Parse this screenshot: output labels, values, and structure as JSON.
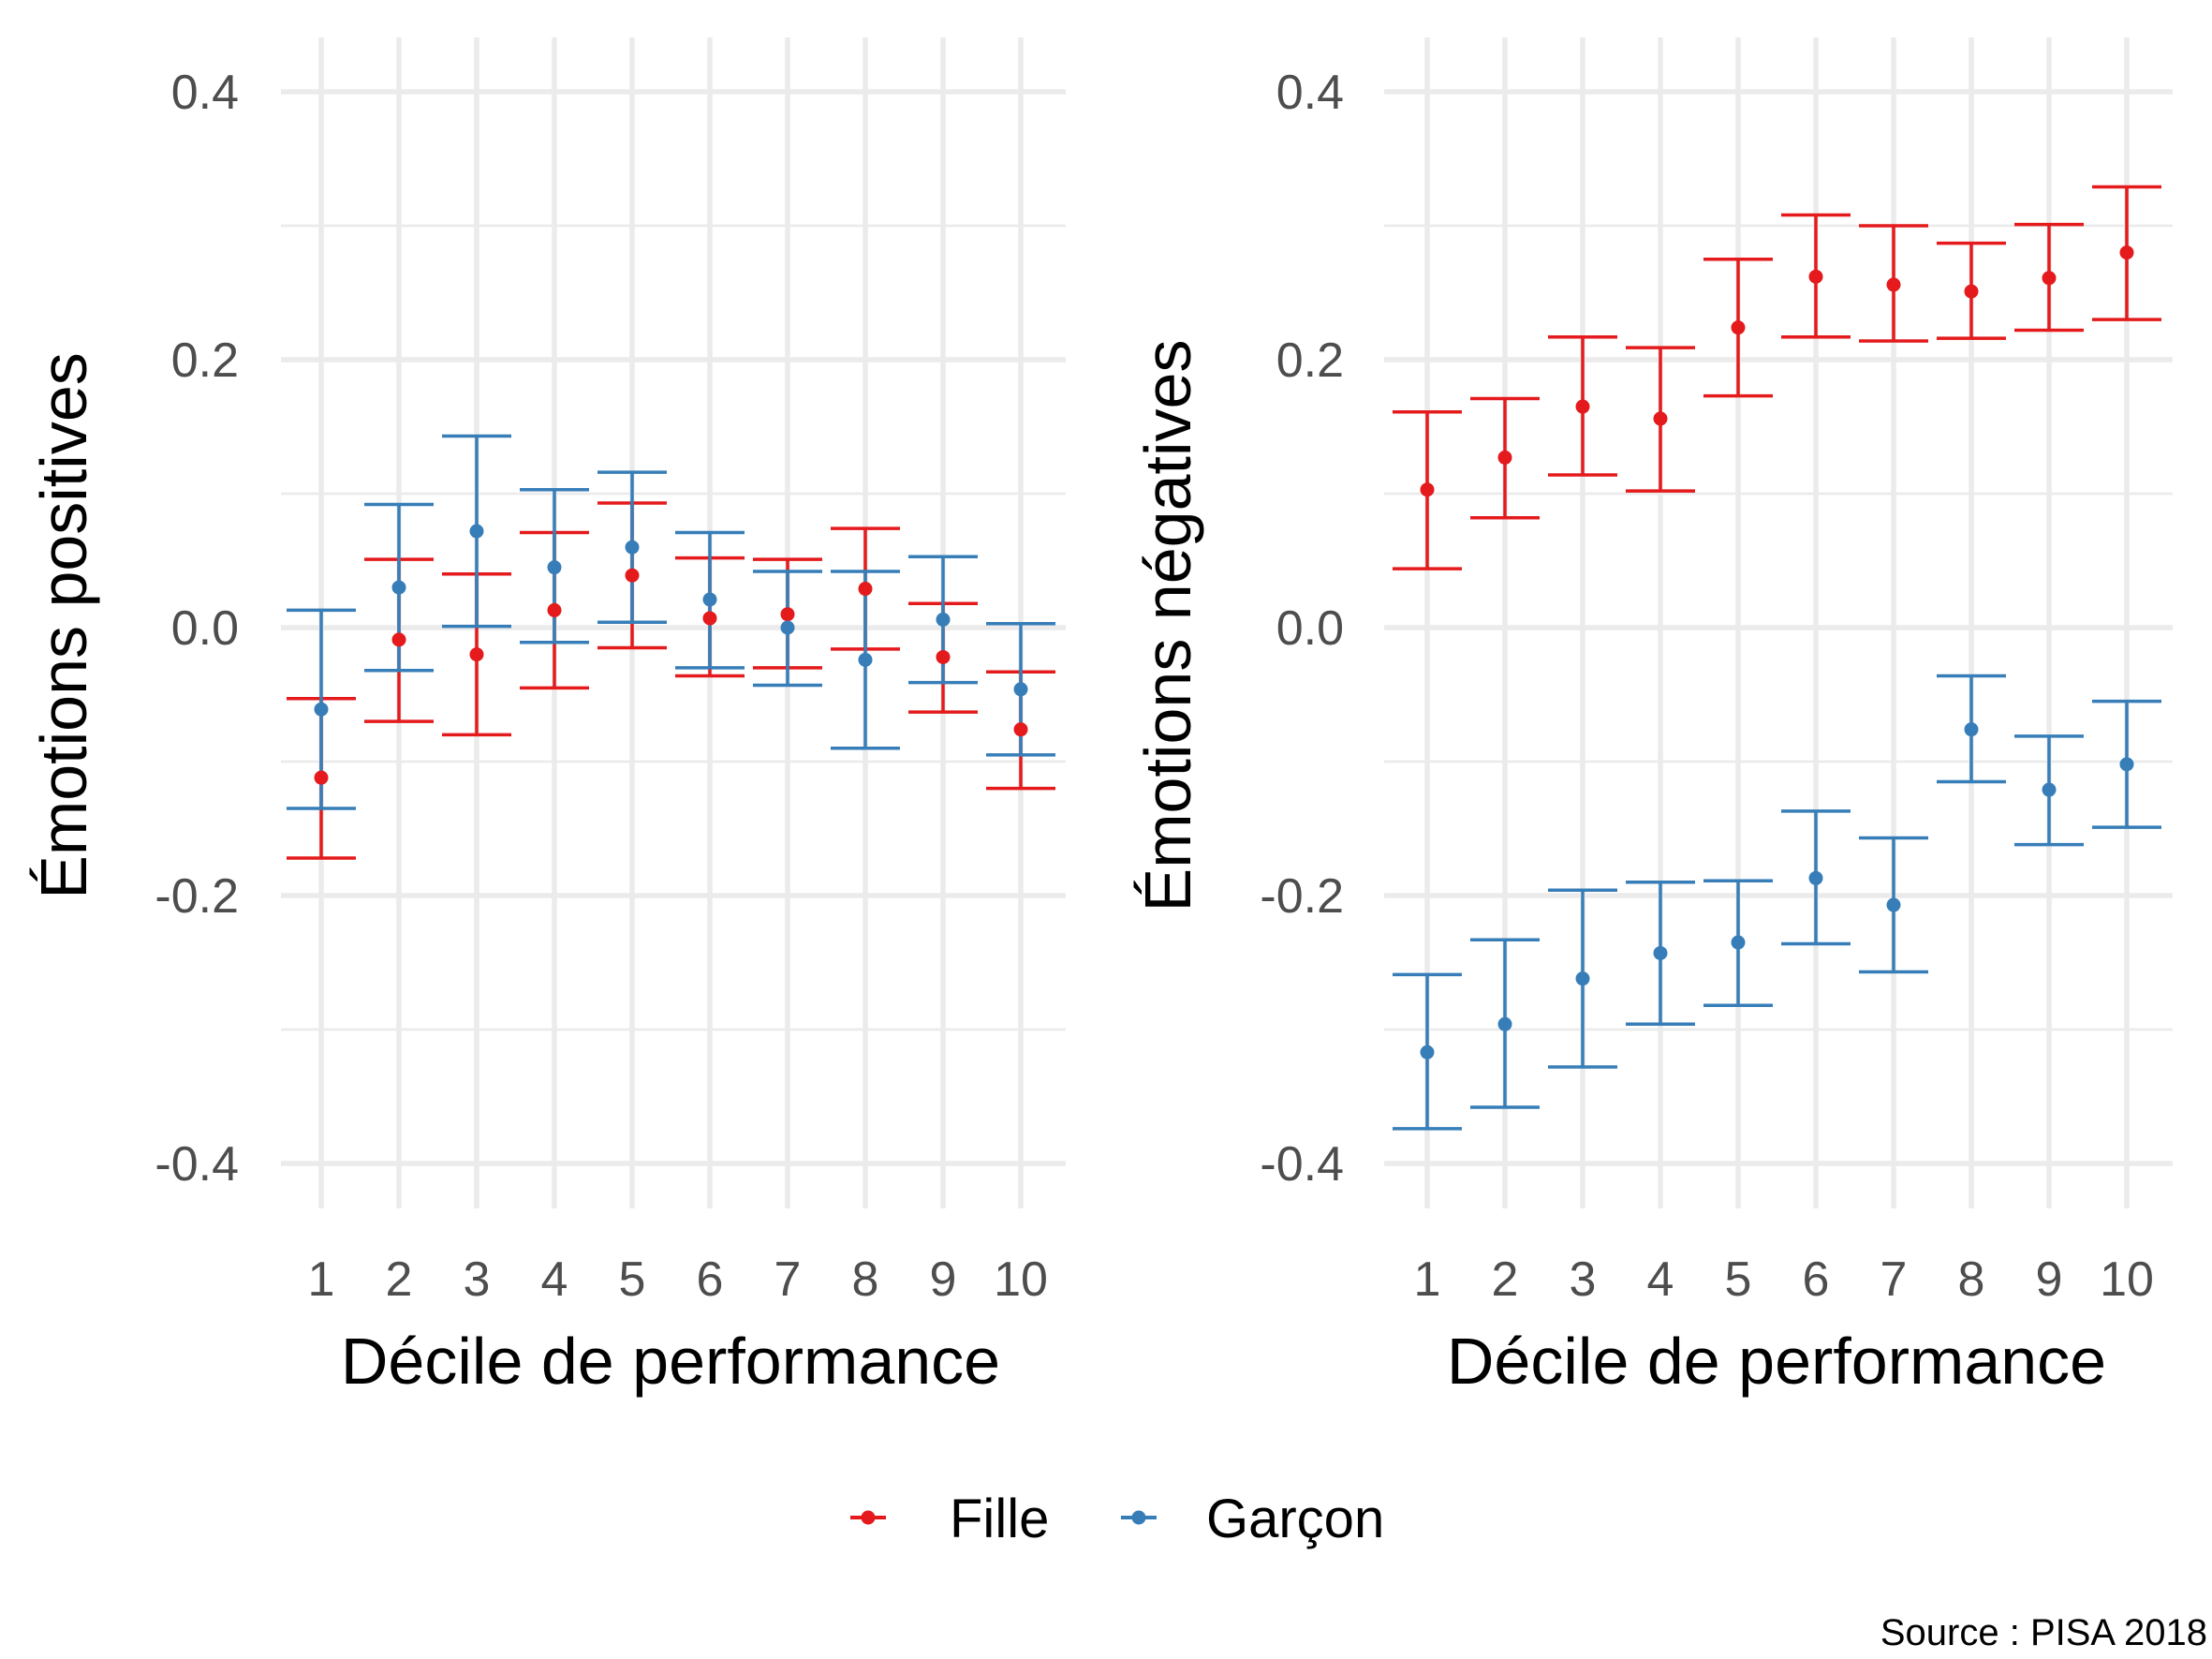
{
  "colors": {
    "Fille": "#e41a1c",
    "Garçon": "#377eb8",
    "grid": "#ebebeb",
    "tick_text": "#4d4d4d"
  },
  "legend": {
    "position": "bottom",
    "items": [
      "Fille",
      "Garçon"
    ]
  },
  "caption": "Source : PISA 2018",
  "chart_data": [
    {
      "type": "errorbar",
      "xlabel": "Décile de performance",
      "ylabel": "Émotions positives",
      "categories": [
        "1",
        "2",
        "3",
        "4",
        "5",
        "6",
        "7",
        "8",
        "9",
        "10"
      ],
      "ylim": [
        -0.44,
        0.44
      ],
      "yticks": [
        -0.4,
        -0.2,
        0.0,
        0.2,
        0.4
      ],
      "ytick_labels": [
        "-0.4",
        "-0.2",
        "0.0",
        "0.2",
        "0.4"
      ],
      "grid": true,
      "series": [
        {
          "name": "Fille",
          "values": [
            -0.112,
            -0.009,
            -0.02,
            0.013,
            0.039,
            0.007,
            0.01,
            0.029,
            -0.022,
            -0.076
          ],
          "lower": [
            -0.172,
            -0.07,
            -0.08,
            -0.045,
            -0.015,
            -0.036,
            -0.03,
            -0.016,
            -0.063,
            -0.12
          ],
          "upper": [
            -0.053,
            0.051,
            0.04,
            0.071,
            0.093,
            0.052,
            0.051,
            0.074,
            0.018,
            -0.033
          ]
        },
        {
          "name": "Garçon",
          "values": [
            -0.061,
            0.03,
            0.072,
            0.045,
            0.06,
            0.021,
            0.0,
            -0.024,
            0.006,
            -0.046
          ],
          "lower": [
            -0.135,
            -0.032,
            0.001,
            -0.011,
            0.004,
            -0.03,
            -0.043,
            -0.09,
            -0.041,
            -0.095
          ],
          "upper": [
            0.013,
            0.092,
            0.143,
            0.103,
            0.116,
            0.071,
            0.042,
            0.042,
            0.053,
            0.003
          ]
        }
      ]
    },
    {
      "type": "errorbar",
      "xlabel": "Décile de performance",
      "ylabel": "Émotions négatives",
      "categories": [
        "1",
        "2",
        "3",
        "4",
        "5",
        "6",
        "7",
        "8",
        "9",
        "10"
      ],
      "ylim": [
        -0.44,
        0.44
      ],
      "yticks": [
        -0.4,
        -0.2,
        0.0,
        0.2,
        0.4
      ],
      "ytick_labels": [
        "-0.4",
        "-0.2",
        "0.0",
        "0.2",
        "0.4"
      ],
      "grid": true,
      "series": [
        {
          "name": "Fille",
          "values": [
            0.103,
            0.127,
            0.165,
            0.156,
            0.224,
            0.262,
            0.256,
            0.251,
            0.261,
            0.28
          ],
          "lower": [
            0.044,
            0.082,
            0.114,
            0.102,
            0.173,
            0.217,
            0.214,
            0.216,
            0.222,
            0.23
          ],
          "upper": [
            0.161,
            0.171,
            0.217,
            0.209,
            0.275,
            0.308,
            0.3,
            0.287,
            0.301,
            0.329
          ]
        },
        {
          "name": "Garçon",
          "values": [
            -0.317,
            -0.296,
            -0.262,
            -0.243,
            -0.235,
            -0.187,
            -0.207,
            -0.076,
            -0.121,
            -0.102
          ],
          "lower": [
            -0.374,
            -0.358,
            -0.328,
            -0.296,
            -0.282,
            -0.236,
            -0.257,
            -0.115,
            -0.162,
            -0.149
          ],
          "upper": [
            -0.259,
            -0.233,
            -0.196,
            -0.19,
            -0.189,
            -0.137,
            -0.157,
            -0.036,
            -0.081,
            -0.055
          ]
        }
      ]
    }
  ]
}
